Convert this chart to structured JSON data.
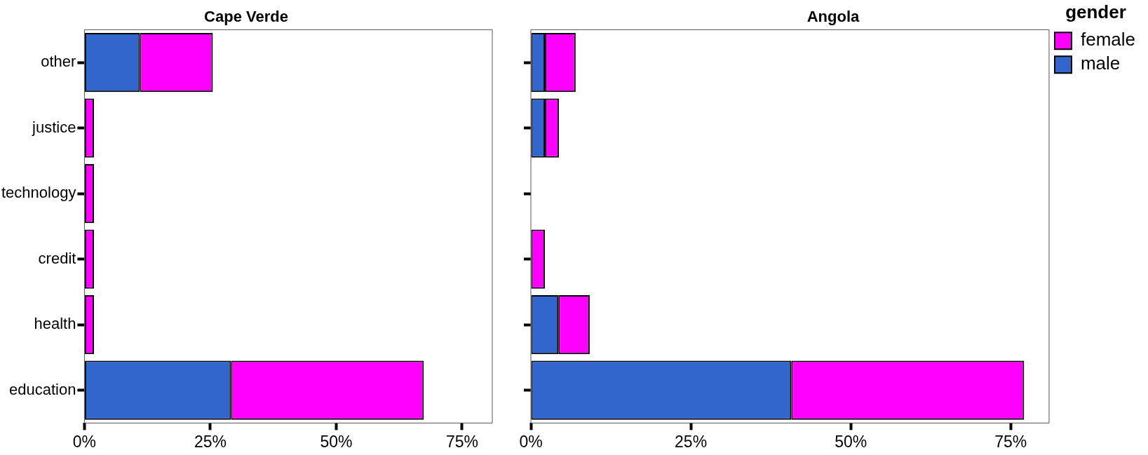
{
  "chart_data": [
    {
      "type": "bar",
      "title": "Cape Verde",
      "orientation": "horizontal",
      "stacked": true,
      "categories": [
        "other",
        "justice",
        "technology",
        "credit",
        "health",
        "education"
      ],
      "series": [
        {
          "color": "#3366cc",
          "values": [
            11.0,
            0,
            0,
            0,
            0,
            29.1
          ]
        },
        {
          "color": "#ff00ff",
          "values": [
            14.5,
            1.9,
            1.9,
            1.9,
            1.9,
            38.3
          ]
        }
      ],
      "xlim": [
        0,
        81
      ],
      "xticks": [
        {
          "value": 0,
          "label": "0%"
        },
        {
          "value": 25,
          "label": "25%"
        },
        {
          "value": 50,
          "label": "50%"
        },
        {
          "value": 75,
          "label": "75%"
        }
      ],
      "grid": false,
      "legend": false
    },
    {
      "type": "bar",
      "title": "Angola",
      "orientation": "horizontal",
      "stacked": true,
      "categories": [
        null,
        null,
        null,
        null,
        null,
        null
      ],
      "series": [
        {
          "name": "male",
          "color": "#3366cc",
          "values": [
            2.2,
            2.2,
            0,
            0,
            4.3,
            40.7
          ]
        },
        {
          "name": "female",
          "color": "#ff00ff",
          "values": [
            4.8,
            2.2,
            0,
            2.2,
            4.9,
            36.4
          ]
        }
      ],
      "xlim": [
        0,
        81
      ],
      "xticks": [
        {
          "value": 0,
          "label": "0%"
        },
        {
          "value": 25,
          "label": "25%"
        },
        {
          "value": 50,
          "label": "50%"
        },
        {
          "value": 75,
          "label": "75%"
        }
      ],
      "grid": false,
      "legend": "right",
      "legend_title": "gender",
      "tick_labels": "x"
    }
  ]
}
